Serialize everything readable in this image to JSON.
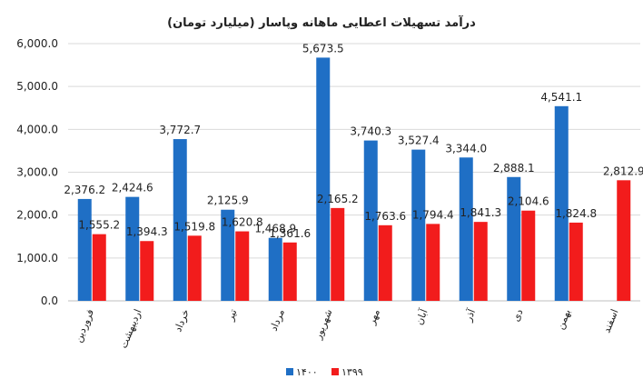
{
  "chart_data": {
    "type": "bar",
    "title": "درآمد تسهیلات اعطایی ماهانه وپاسار (میلیارد تومان)",
    "categories": [
      "فروردین",
      "اردیبهشت",
      "خرداد",
      "تیر",
      "مرداد",
      "شهریور",
      "مهر",
      "آبان",
      "آذر",
      "دی",
      "بهمن",
      "اسفند"
    ],
    "series": [
      {
        "name": "۱۴۰۰",
        "color": "#1f6fc5",
        "values": [
          2376.2,
          2424.6,
          3772.7,
          2125.9,
          1468.9,
          5673.5,
          3740.3,
          3527.4,
          3344.0,
          2888.1,
          4541.1,
          null
        ],
        "labels": [
          "2,376.2",
          "2,424.6",
          "3,772.7",
          "2,125.9",
          "1,468.9",
          "5,673.5",
          "3,740.3",
          "3,527.4",
          "3,344.0",
          "2,888.1",
          "4,541.1",
          ""
        ]
      },
      {
        "name": "۱۳۹۹",
        "color": "#f21c1c",
        "values": [
          1555.2,
          1394.3,
          1519.8,
          1620.8,
          1361.6,
          2165.2,
          1763.6,
          1794.4,
          1841.3,
          2104.6,
          1824.8,
          2812.9
        ],
        "labels": [
          "1,555.2",
          "1,394.3",
          "1,519.8",
          "1,620.8",
          "1,361.6",
          "2,165.2",
          "1,763.6",
          "1,794.4",
          "1,841.3",
          "2,104.6",
          "1,824.8",
          "2,812.9"
        ]
      }
    ],
    "ylim": [
      0,
      6000
    ],
    "yticks": [
      0,
      1000,
      2000,
      3000,
      4000,
      5000,
      6000
    ],
    "ytick_labels": [
      "0.0",
      "1,000.0",
      "2,000.0",
      "3,000.0",
      "4,000.0",
      "5,000.0",
      "6,000.0"
    ],
    "grid": true,
    "legend_position": "bottom-center",
    "legend_order": [
      "۱۴۰۰",
      "۱۳۹۹"
    ]
  }
}
